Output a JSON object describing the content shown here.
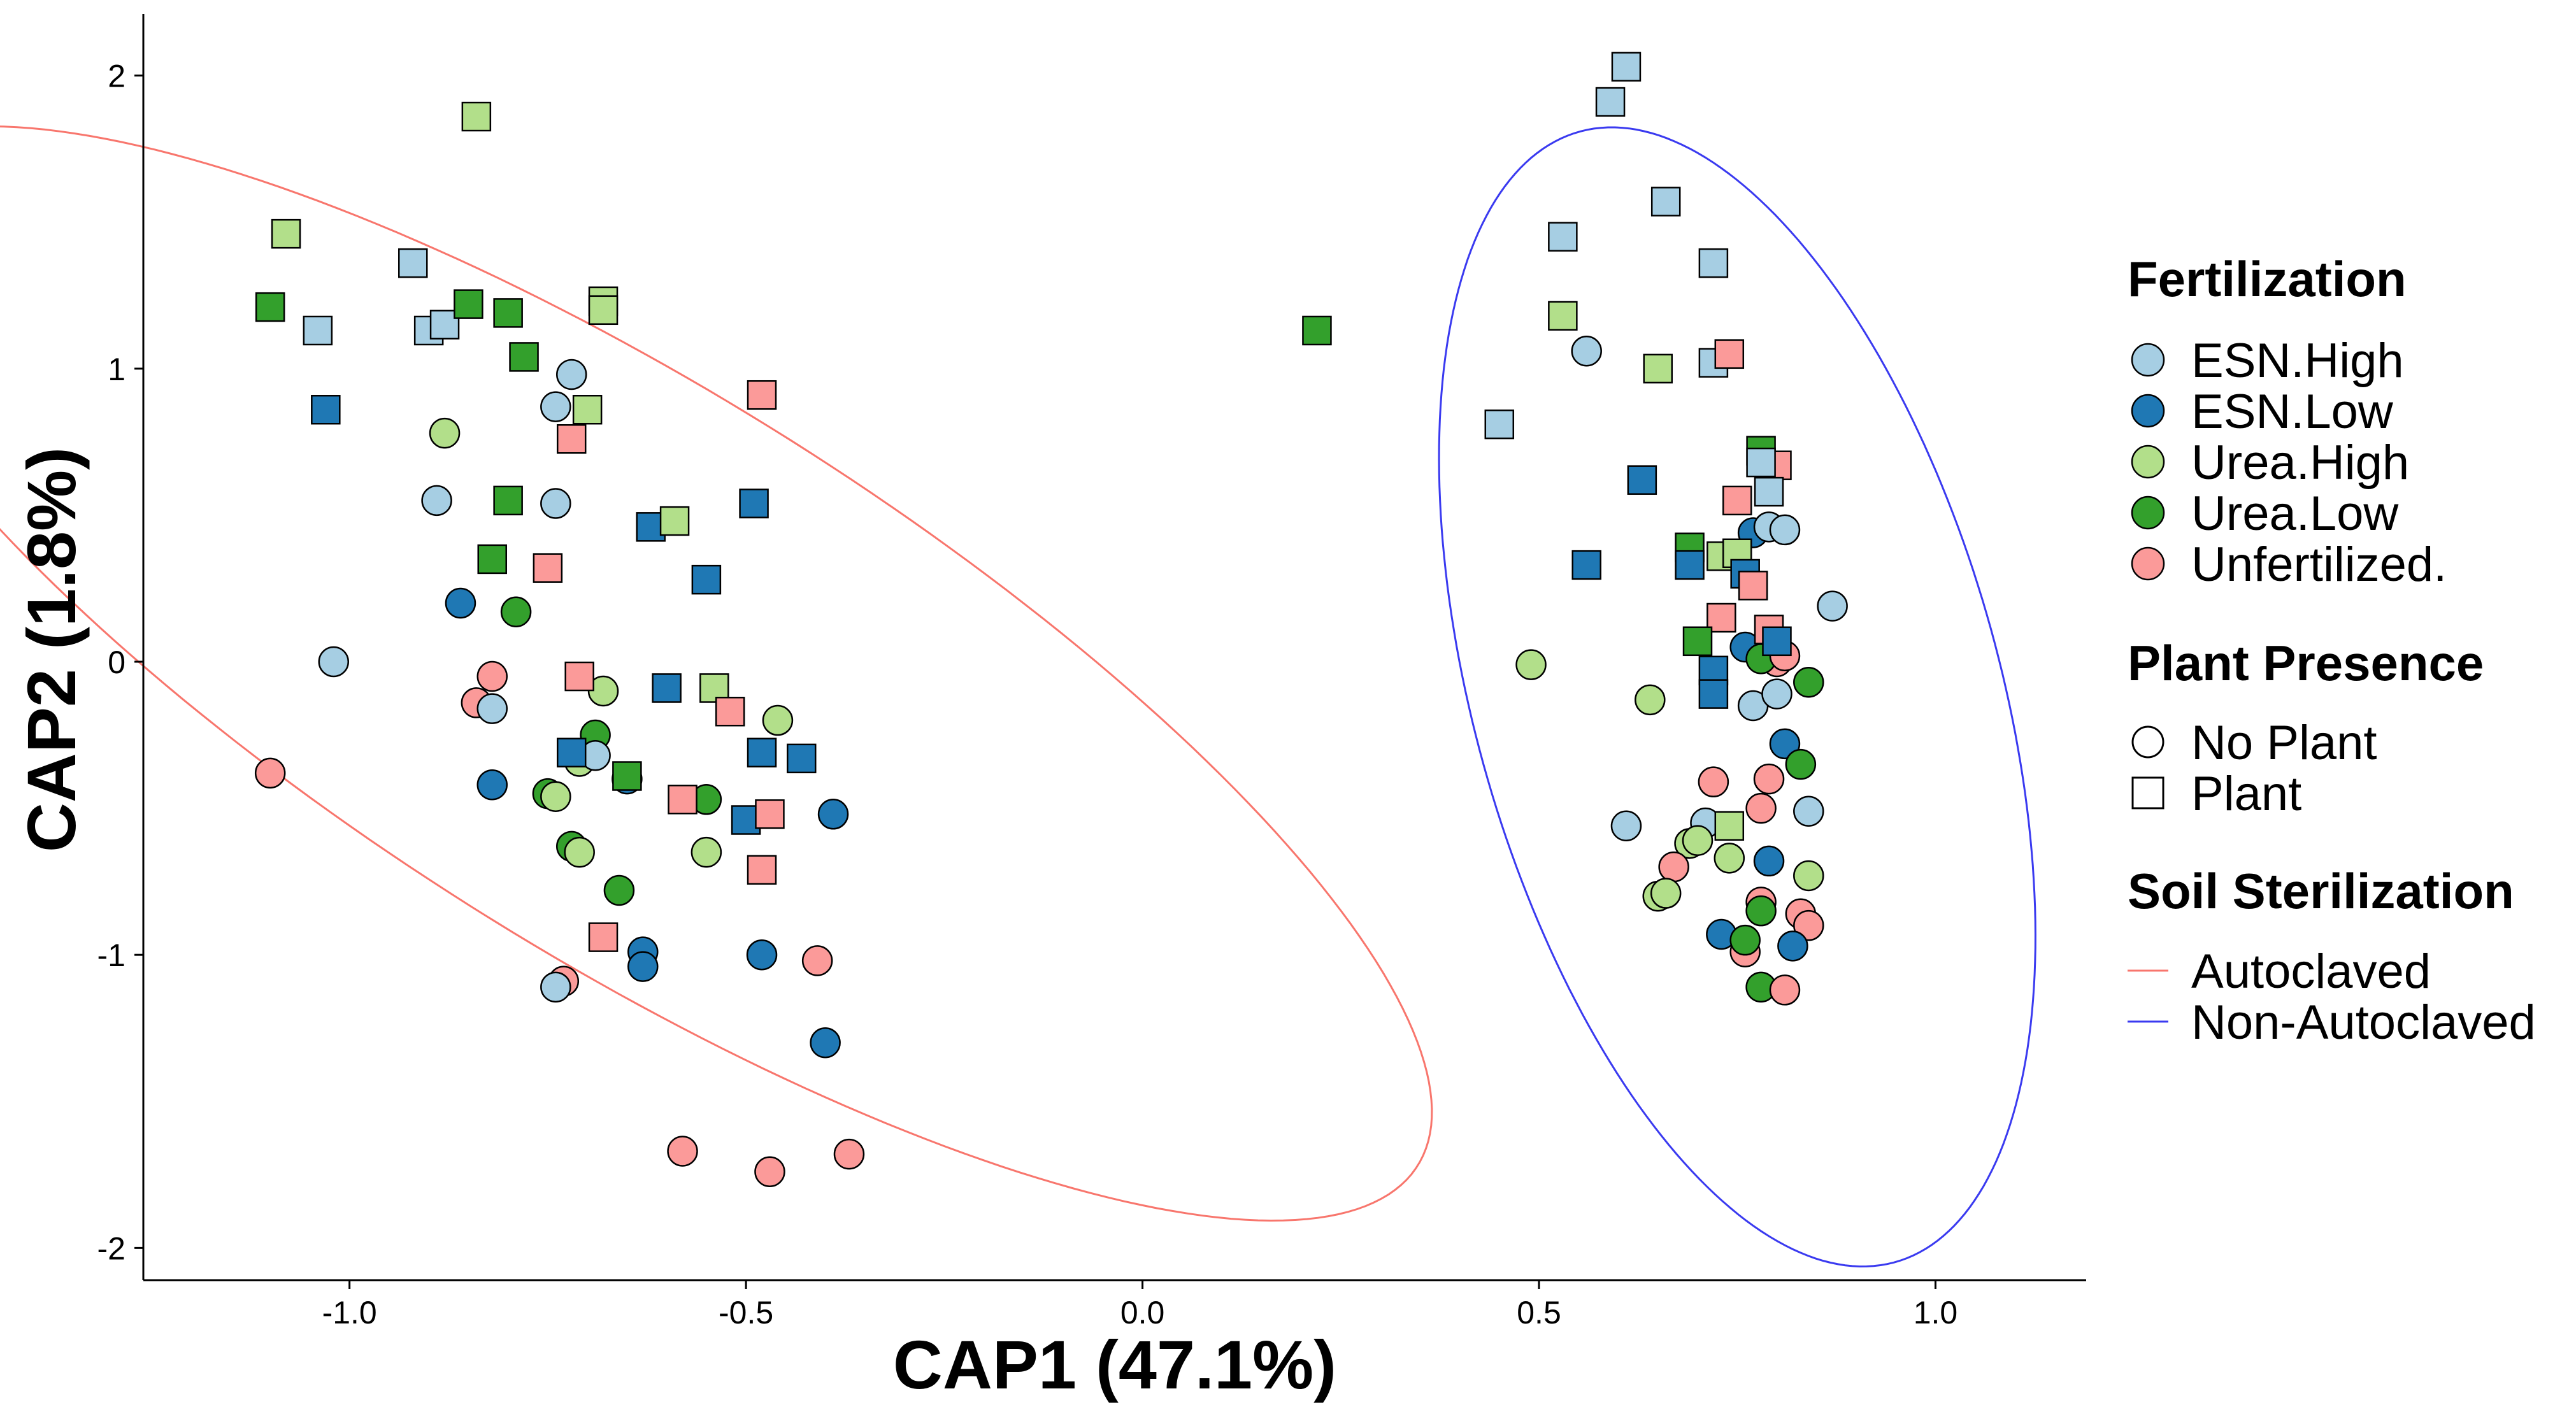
{
  "chart_data": {
    "type": "scatter",
    "xlabel": "CAP1 (47.1%)",
    "ylabel": "CAP2 (1.8%)",
    "xlim": [
      -1.26,
      1.19
    ],
    "ylim": [
      -2.11,
      2.21
    ],
    "x_ticks": [
      -1.0,
      -0.5,
      0.0,
      0.5,
      1.0
    ],
    "x_tick_labels": [
      "-1.0",
      "-0.5",
      "0.0",
      "0.5",
      "1.0"
    ],
    "y_ticks": [
      -2,
      -1,
      0,
      1,
      2
    ],
    "y_tick_labels": [
      "-2",
      "-1",
      "0",
      "1",
      "2"
    ],
    "grid": false,
    "legend_position": "right",
    "fertilization": {
      "title": "Fertilization",
      "levels": [
        {
          "key": "EH",
          "label": "ESN.High",
          "color": "#a6cee3"
        },
        {
          "key": "EL",
          "label": "ESN.Low",
          "color": "#1f78b4"
        },
        {
          "key": "UH",
          "label": "Urea.High",
          "color": "#b2df8a"
        },
        {
          "key": "UL",
          "label": "Urea.Low",
          "color": "#33a02c"
        },
        {
          "key": "UN",
          "label": "Unfertilized.",
          "color": "#fb9a99"
        }
      ]
    },
    "plant_presence": {
      "title": "Plant Presence",
      "levels": [
        {
          "key": "N",
          "label": "No Plant",
          "shape": "circle"
        },
        {
          "key": "P",
          "label": "Plant",
          "shape": "square"
        }
      ]
    },
    "soil_sterilization": {
      "title": "Soil Sterilization",
      "levels": [
        {
          "key": "A",
          "label": "Autoclaved",
          "color": "#f8766d"
        },
        {
          "key": "N",
          "label": "Non-Autoclaved",
          "color": "#3a3af0"
        }
      ]
    },
    "ellipses": [
      {
        "group": "Autoclaved",
        "color": "#f8766d",
        "cx": -0.645,
        "cy": -0.04,
        "semi_major": 2.05,
        "semi_minor": 0.55,
        "angle_deg": -64.6
      },
      {
        "group": "Non-Autoclaved",
        "color": "#3a3af0",
        "cx": 0.75,
        "cy": -0.12,
        "semi_major": 1.95,
        "semi_minor": 0.34,
        "angle_deg": -85.2
      }
    ],
    "series": [
      {
        "name": "Autoclaved / No Plant",
        "sterilization": "Autoclaved",
        "plant": "No Plant",
        "points": [
          [
            -0.88,
            0.78,
            "UH"
          ],
          [
            -0.89,
            0.55,
            "EH"
          ],
          [
            -0.72,
            0.98,
            "EH"
          ],
          [
            -0.74,
            0.87,
            "EH"
          ],
          [
            -0.74,
            0.54,
            "EH"
          ],
          [
            -1.02,
            0.0,
            "EH"
          ],
          [
            -0.86,
            0.2,
            "EL"
          ],
          [
            -0.79,
            0.17,
            "UL"
          ],
          [
            -0.82,
            -0.05,
            "UN"
          ],
          [
            -0.84,
            -0.14,
            "UN"
          ],
          [
            -0.82,
            -0.16,
            "EH"
          ],
          [
            -0.68,
            -0.1,
            "UH"
          ],
          [
            -0.69,
            -0.25,
            "UL"
          ],
          [
            -0.71,
            -0.34,
            "UH"
          ],
          [
            -0.69,
            -0.32,
            "EH"
          ],
          [
            -0.65,
            -0.4,
            "EL"
          ],
          [
            -0.46,
            -0.2,
            "UH"
          ],
          [
            -0.82,
            -0.42,
            "EL"
          ],
          [
            -0.75,
            -0.45,
            "UL"
          ],
          [
            -0.74,
            -0.46,
            "UH"
          ],
          [
            -0.72,
            -0.63,
            "UL"
          ],
          [
            -0.71,
            -0.65,
            "UH"
          ],
          [
            -0.55,
            -0.47,
            "UL"
          ],
          [
            -0.55,
            -0.65,
            "UH"
          ],
          [
            -0.66,
            -0.78,
            "UL"
          ],
          [
            -0.63,
            -0.99,
            "EL"
          ],
          [
            -0.63,
            -1.04,
            "EL"
          ],
          [
            -0.48,
            -1.0,
            "EL"
          ],
          [
            -0.41,
            -1.02,
            "UN"
          ],
          [
            -0.39,
            -0.52,
            "EL"
          ],
          [
            -0.4,
            -1.3,
            "EL"
          ],
          [
            -0.73,
            -1.09,
            "UN"
          ],
          [
            -0.74,
            -1.11,
            "EH"
          ],
          [
            -0.58,
            -1.67,
            "UN"
          ],
          [
            -0.47,
            -1.74,
            "UN"
          ],
          [
            -0.37,
            -1.68,
            "UN"
          ],
          [
            -1.1,
            -0.38,
            "UN"
          ]
        ]
      },
      {
        "name": "Autoclaved / Plant",
        "sterilization": "Autoclaved",
        "plant": "Plant",
        "points": [
          [
            -1.08,
            1.46,
            "UH"
          ],
          [
            -0.84,
            1.86,
            "UH"
          ],
          [
            -1.1,
            1.21,
            "UL"
          ],
          [
            -1.04,
            1.13,
            "EH"
          ],
          [
            -0.92,
            1.36,
            "EH"
          ],
          [
            -0.9,
            1.13,
            "EH"
          ],
          [
            -0.88,
            1.15,
            "EH"
          ],
          [
            -0.85,
            1.22,
            "UL"
          ],
          [
            -0.8,
            1.19,
            "UL"
          ],
          [
            -0.78,
            1.04,
            "UL"
          ],
          [
            -0.68,
            1.23,
            "UH"
          ],
          [
            -0.68,
            1.2,
            "UH"
          ],
          [
            -1.03,
            0.86,
            "EL"
          ],
          [
            -0.7,
            0.86,
            "UH"
          ],
          [
            -0.72,
            0.76,
            "UN"
          ],
          [
            -0.48,
            0.91,
            "UN"
          ],
          [
            -0.8,
            0.55,
            "UL"
          ],
          [
            -0.62,
            0.46,
            "EL"
          ],
          [
            -0.59,
            0.48,
            "UH"
          ],
          [
            -0.49,
            0.54,
            "EL"
          ],
          [
            -0.82,
            0.35,
            "UL"
          ],
          [
            -0.75,
            0.32,
            "UN"
          ],
          [
            -0.55,
            0.28,
            "EL"
          ],
          [
            -0.71,
            -0.05,
            "UN"
          ],
          [
            -0.6,
            -0.09,
            "EL"
          ],
          [
            -0.54,
            -0.09,
            "UH"
          ],
          [
            -0.52,
            -0.17,
            "UN"
          ],
          [
            -0.72,
            -0.31,
            "EL"
          ],
          [
            -0.65,
            -0.39,
            "UL"
          ],
          [
            -0.48,
            -0.31,
            "EL"
          ],
          [
            -0.43,
            -0.33,
            "EL"
          ],
          [
            -0.58,
            -0.47,
            "UN"
          ],
          [
            -0.5,
            -0.54,
            "EL"
          ],
          [
            -0.47,
            -0.52,
            "UN"
          ],
          [
            -0.48,
            -0.71,
            "UN"
          ],
          [
            -0.68,
            -0.94,
            "UN"
          ]
        ]
      },
      {
        "name": "Non-Autoclaved / No Plant",
        "sterilization": "Non-Autoclaved",
        "plant": "No Plant",
        "points": [
          [
            0.56,
            1.06,
            "EH"
          ],
          [
            0.49,
            -0.01,
            "UH"
          ],
          [
            0.64,
            -0.13,
            "UH"
          ],
          [
            0.77,
            0.44,
            "EL"
          ],
          [
            0.79,
            0.46,
            "EH"
          ],
          [
            0.81,
            0.45,
            "EH"
          ],
          [
            0.87,
            0.19,
            "EH"
          ],
          [
            0.76,
            0.05,
            "EL"
          ],
          [
            0.8,
            0.0,
            "UN"
          ],
          [
            0.78,
            0.01,
            "UL"
          ],
          [
            0.81,
            0.02,
            "UN"
          ],
          [
            0.84,
            -0.07,
            "UL"
          ],
          [
            0.77,
            -0.15,
            "EH"
          ],
          [
            0.8,
            -0.11,
            "EH"
          ],
          [
            0.81,
            -0.28,
            "EL"
          ],
          [
            0.83,
            -0.35,
            "UL"
          ],
          [
            0.72,
            -0.41,
            "UN"
          ],
          [
            0.79,
            -0.4,
            "UN"
          ],
          [
            0.78,
            -0.5,
            "UN"
          ],
          [
            0.84,
            -0.51,
            "EH"
          ],
          [
            0.61,
            -0.56,
            "EH"
          ],
          [
            0.71,
            -0.55,
            "EH"
          ],
          [
            0.69,
            -0.62,
            "UH"
          ],
          [
            0.7,
            -0.61,
            "UH"
          ],
          [
            0.74,
            -0.67,
            "UH"
          ],
          [
            0.67,
            -0.7,
            "UN"
          ],
          [
            0.65,
            -0.8,
            "UH"
          ],
          [
            0.66,
            -0.79,
            "UH"
          ],
          [
            0.79,
            -0.68,
            "EL"
          ],
          [
            0.84,
            -0.73,
            "UH"
          ],
          [
            0.78,
            -0.82,
            "UN"
          ],
          [
            0.78,
            -0.85,
            "UL"
          ],
          [
            0.83,
            -0.86,
            "UN"
          ],
          [
            0.84,
            -0.9,
            "UN"
          ],
          [
            0.73,
            -0.93,
            "EL"
          ],
          [
            0.76,
            -0.99,
            "UN"
          ],
          [
            0.76,
            -0.95,
            "UL"
          ],
          [
            0.82,
            -0.97,
            "EL"
          ],
          [
            0.78,
            -1.11,
            "UL"
          ],
          [
            0.81,
            -1.12,
            "UN"
          ]
        ]
      },
      {
        "name": "Non-Autoclaved / Plant",
        "sterilization": "Non-Autoclaved",
        "plant": "Plant",
        "points": [
          [
            0.61,
            2.03,
            "EH"
          ],
          [
            0.59,
            1.91,
            "EH"
          ],
          [
            0.53,
            1.45,
            "EH"
          ],
          [
            0.66,
            1.57,
            "EH"
          ],
          [
            0.72,
            1.36,
            "EH"
          ],
          [
            0.53,
            1.18,
            "UH"
          ],
          [
            0.65,
            1.0,
            "UH"
          ],
          [
            0.72,
            1.02,
            "EH"
          ],
          [
            0.74,
            1.05,
            "UN"
          ],
          [
            0.22,
            1.13,
            "UL"
          ],
          [
            0.45,
            0.81,
            "EH"
          ],
          [
            0.63,
            0.62,
            "EL"
          ],
          [
            0.56,
            0.33,
            "EL"
          ],
          [
            0.78,
            0.72,
            "UL"
          ],
          [
            0.8,
            0.67,
            "UN"
          ],
          [
            0.78,
            0.68,
            "EH"
          ],
          [
            0.79,
            0.58,
            "EH"
          ],
          [
            0.75,
            0.55,
            "UN"
          ],
          [
            0.69,
            0.39,
            "UL"
          ],
          [
            0.69,
            0.33,
            "EL"
          ],
          [
            0.73,
            0.36,
            "UH"
          ],
          [
            0.75,
            0.37,
            "UH"
          ],
          [
            0.76,
            0.3,
            "EL"
          ],
          [
            0.77,
            0.26,
            "UN"
          ],
          [
            0.73,
            0.15,
            "UN"
          ],
          [
            0.7,
            0.07,
            "UL"
          ],
          [
            0.79,
            0.11,
            "UN"
          ],
          [
            0.8,
            0.07,
            "EL"
          ],
          [
            0.72,
            -0.03,
            "EL"
          ],
          [
            0.72,
            -0.11,
            "EL"
          ],
          [
            0.74,
            -0.56,
            "UH"
          ]
        ]
      }
    ]
  }
}
